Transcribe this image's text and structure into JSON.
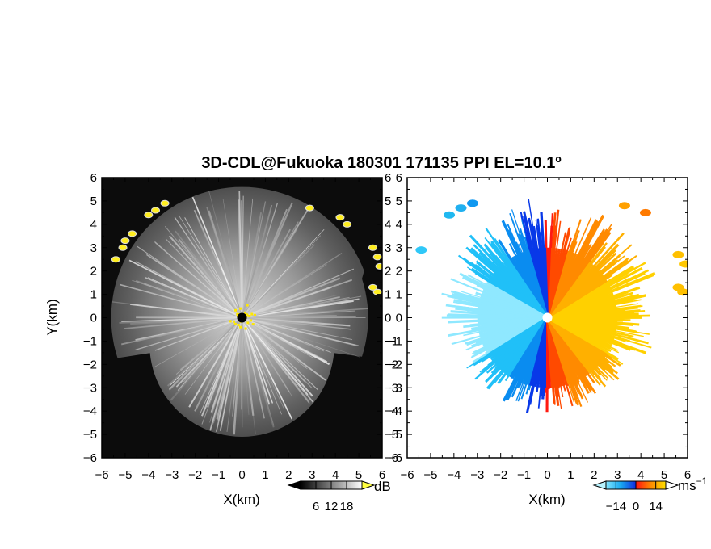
{
  "title": "3D-CDL@Fukuoka 180301 171135 PPI EL=10.1º",
  "chart_data": [
    {
      "type": "heatmap",
      "panel": "left",
      "quantity": "reflectivity / SNR (grayscale)",
      "xlabel": "X(km)",
      "ylabel": "Y(km)",
      "xlim": [
        -6,
        6
      ],
      "ylim": [
        -6,
        6
      ],
      "xticks": [
        "−6",
        "−5",
        "−4",
        "−3",
        "−2",
        "−1",
        "0",
        "1",
        "2",
        "3",
        "4",
        "5",
        "6"
      ],
      "yticks": [
        "6",
        "5",
        "4",
        "3",
        "2",
        "1",
        "0",
        "−1",
        "−2",
        "−3",
        "−4",
        "−5",
        "−6"
      ],
      "center_marker": "black-dot",
      "colorbar": {
        "unit": "dB",
        "ticks": [
          "6",
          "12",
          "18"
        ],
        "min": 0,
        "max": 24
      }
    },
    {
      "type": "heatmap",
      "panel": "right",
      "quantity": "radial velocity",
      "xlabel": "X(km)",
      "ylabel": "",
      "xlim": [
        -6,
        6
      ],
      "ylim": [
        -6,
        6
      ],
      "xticks": [
        "−6",
        "−5",
        "−4",
        "−3",
        "−2",
        "−1",
        "0",
        "1",
        "2",
        "3",
        "4",
        "5",
        "6"
      ],
      "yticks": [
        "6",
        "5",
        "4",
        "3",
        "2",
        "1",
        "0",
        "−1",
        "−2",
        "−3",
        "−4",
        "−5",
        "−6"
      ],
      "center_marker": "white-dot",
      "colorbar": {
        "unit": "ms",
        "unit_sup": "−1",
        "ticks": [
          "−14",
          "0",
          "14"
        ],
        "min": -21,
        "max": 21
      },
      "colors": {
        "toward": "#0a7cf0",
        "near_zero_neg": "#1040e0",
        "near_zero_pos": "#ff2010",
        "away": "#ffb000"
      }
    }
  ]
}
